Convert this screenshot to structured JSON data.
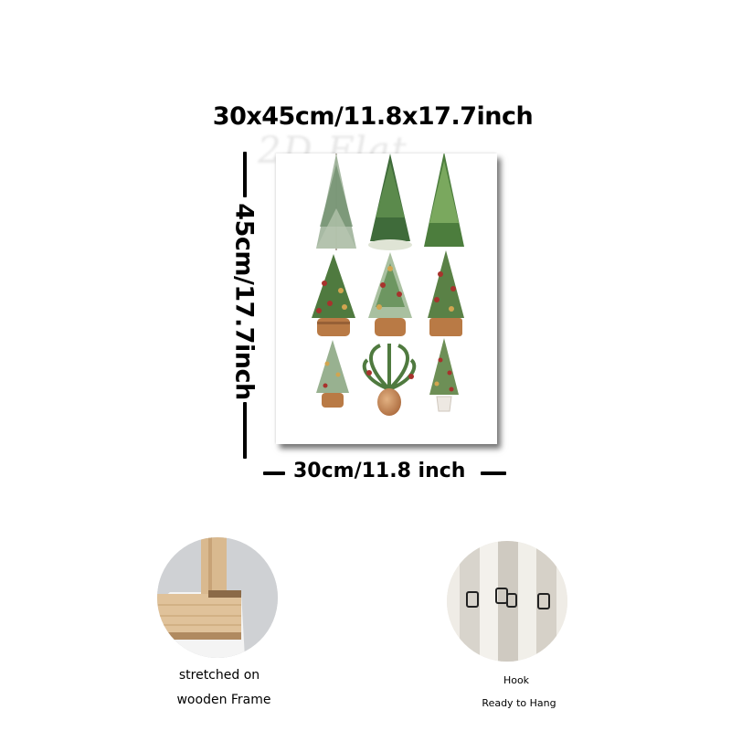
{
  "title": "30x45cm/11.8x17.7inch",
  "watermark": "2D Flat",
  "height_label": "45cm/17.7inch",
  "width_label": "30cm/11.8 inch",
  "frame_caption": {
    "line1": "stretched on",
    "line2": "wooden Frame"
  },
  "hook_caption": {
    "line1": "Hook",
    "line2": "Ready to Hang"
  },
  "colors": {
    "tree_dark": "#3f6b3a",
    "tree_light": "#8fae7d",
    "ornament_red": "#a8322c",
    "ornament_gold": "#d1a550",
    "basket": "#b97a45",
    "wood": "#d9b98f"
  }
}
